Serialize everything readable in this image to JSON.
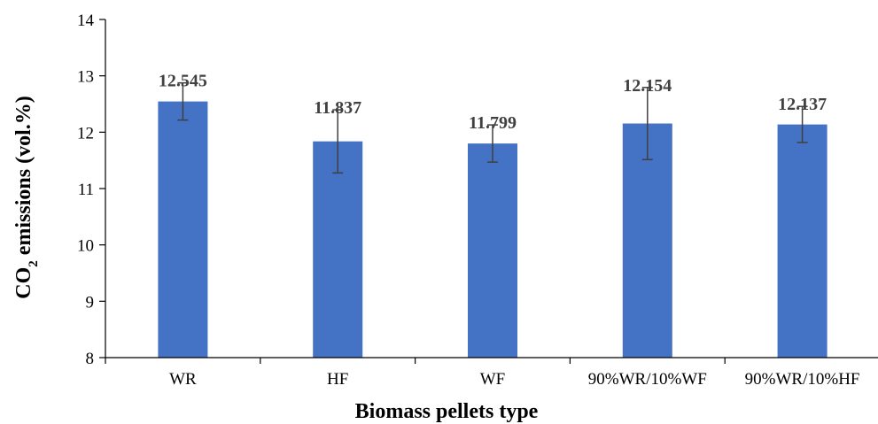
{
  "chart_data": {
    "type": "bar",
    "title": "",
    "xlabel": "Biomass pellets type",
    "ylabel": "CO2 emissions (vol.%)",
    "ylabel_parts": {
      "pre": "CO",
      "sub": "2",
      "post": " emissions (vol.%)"
    },
    "categories": [
      "WR",
      "HF",
      "WF",
      "90%WR/10%WF",
      "90%WR/10%HF"
    ],
    "values": [
      12.545,
      11.837,
      11.799,
      12.154,
      12.137
    ],
    "value_labels": [
      "12.545",
      "11.837",
      "11.799",
      "12.154",
      "12.137"
    ],
    "error": [
      0.33,
      0.56,
      0.33,
      0.64,
      0.32
    ],
    "ylim": [
      8,
      14
    ],
    "yticks": [
      "8",
      "9",
      "10",
      "11",
      "12",
      "13",
      "14"
    ],
    "grid": false,
    "legend": "none",
    "colors": {
      "bar": "#4472C4",
      "error_bar": "#404040",
      "axis": "#000000"
    }
  }
}
